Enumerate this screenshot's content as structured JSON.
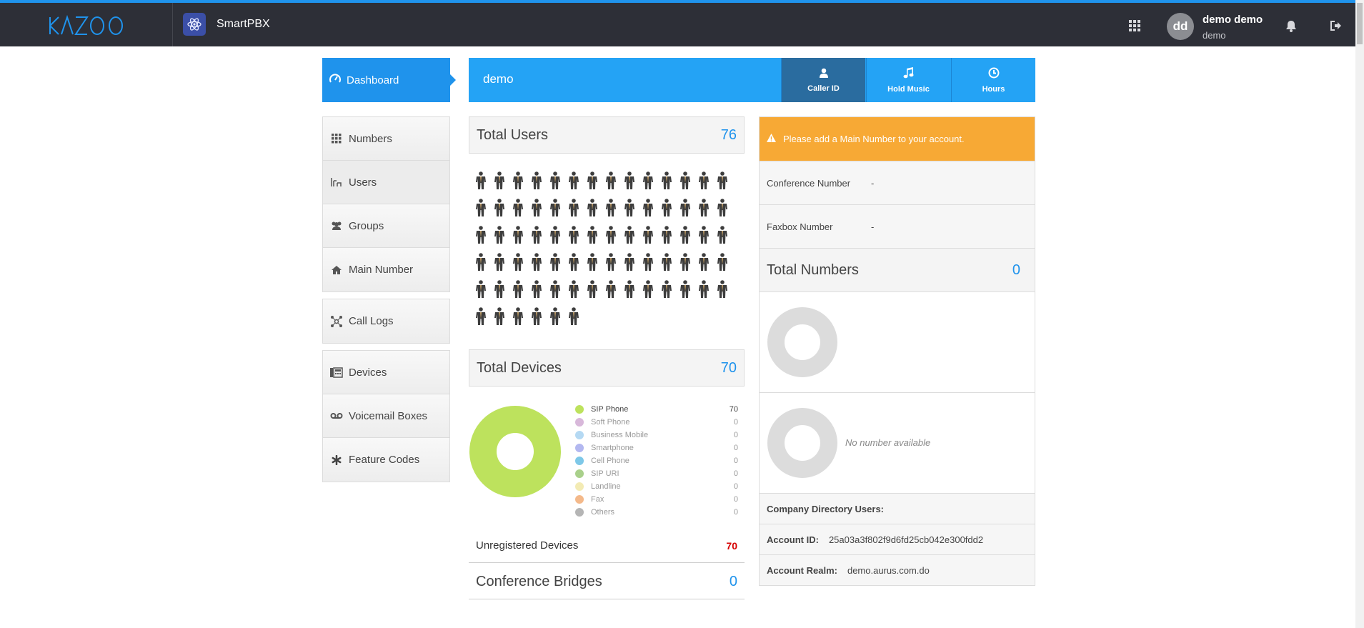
{
  "topbar": {
    "logo": "KAZOO",
    "app_name": "SmartPBX",
    "user_initials": "dd",
    "user_name": "demo demo",
    "user_account": "demo",
    "accent": "#1f93ec"
  },
  "nav": {
    "dashboard": "Dashboard",
    "group1": [
      "Numbers",
      "Users",
      "Groups",
      "Main Number"
    ],
    "group2": [
      "Call Logs"
    ],
    "group3": [
      "Devices",
      "Voicemail Boxes",
      "Feature Codes"
    ]
  },
  "header": {
    "account_name": "demo",
    "buttons": [
      "Caller ID",
      "Hold Music",
      "Hours"
    ]
  },
  "users": {
    "label": "Total Users",
    "count": "76",
    "icon_count": 76,
    "icon": "user-icon"
  },
  "devices": {
    "label": "Total Devices",
    "count": "70",
    "legend": [
      {
        "name": "SIP Phone",
        "value": "70",
        "color": "#bde25d"
      },
      {
        "name": "Soft Phone",
        "value": "0",
        "color": "#d8b8da"
      },
      {
        "name": "Business Mobile",
        "value": "0",
        "color": "#b5d9f3"
      },
      {
        "name": "Smartphone",
        "value": "0",
        "color": "#b3b8f0"
      },
      {
        "name": "Cell Phone",
        "value": "0",
        "color": "#7ec8e8"
      },
      {
        "name": "SIP URI",
        "value": "0",
        "color": "#a9d08b"
      },
      {
        "name": "Landline",
        "value": "0",
        "color": "#f3ebb4"
      },
      {
        "name": "Fax",
        "value": "0",
        "color": "#f4b98a"
      },
      {
        "name": "Others",
        "value": "0",
        "color": "#b5b5b5"
      }
    ],
    "unregistered_label": "Unregistered Devices",
    "unregistered_count": "70"
  },
  "conference": {
    "label": "Conference Bridges",
    "count": "0"
  },
  "right": {
    "alert": "Please add a Main Number to your account.",
    "conference_number_label": "Conference Number",
    "conference_number_value": "-",
    "faxbox_number_label": "Faxbox Number",
    "faxbox_number_value": "-",
    "total_numbers_label": "Total Numbers",
    "total_numbers_count": "0",
    "no_number": "No number available",
    "company_directory_label": "Company Directory Users:",
    "account_id_label": "Account ID:",
    "account_id_value": "25a03a3f802f9d6fd25cb042e300fdd2",
    "account_realm_label": "Account Realm:",
    "account_realm_value": "demo.aurus.com.do"
  }
}
